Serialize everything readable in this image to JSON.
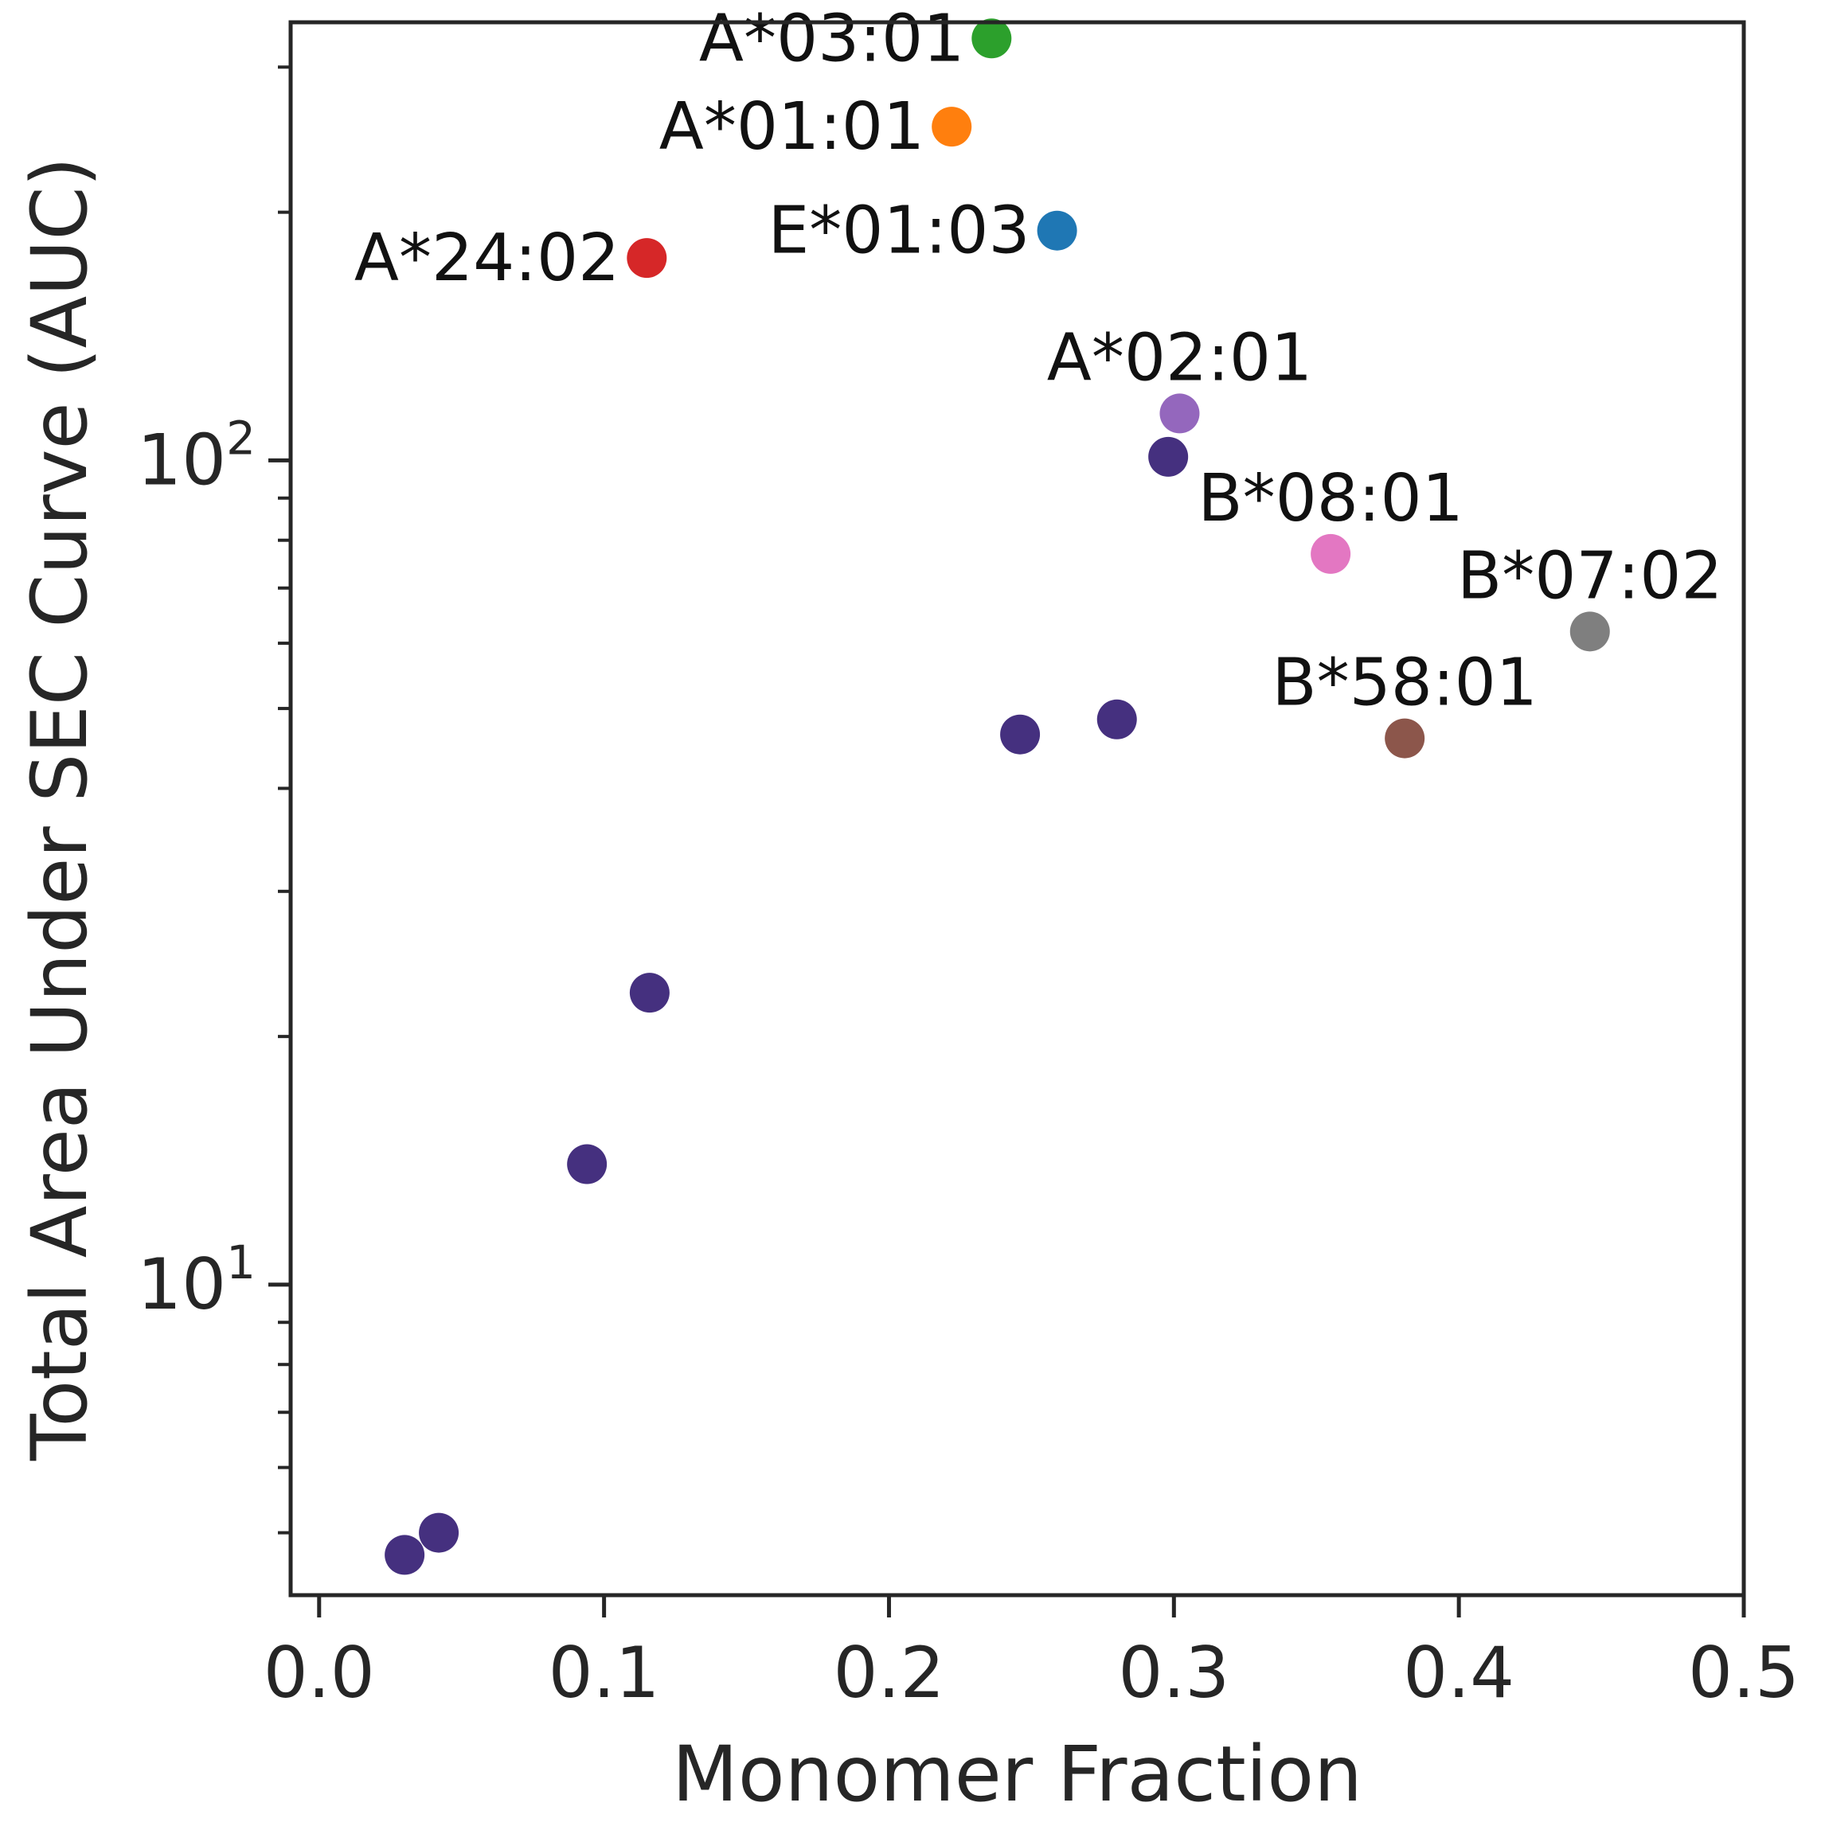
{
  "chart_data": {
    "type": "scatter",
    "title": "",
    "xlabel": "Monomer Fraction",
    "ylabel": "Total Area Under SEC Curve (AUC)",
    "xlim": [
      -0.01,
      0.5
    ],
    "ylim": [
      4.2,
      340
    ],
    "yscale": "log",
    "grid": false,
    "x_ticks": [
      {
        "value": 0.0,
        "label": "0.0"
      },
      {
        "value": 0.1,
        "label": "0.1"
      },
      {
        "value": 0.2,
        "label": "0.2"
      },
      {
        "value": 0.3,
        "label": "0.3"
      },
      {
        "value": 0.4,
        "label": "0.4"
      },
      {
        "value": 0.5,
        "label": "0.5"
      }
    ],
    "y_major_ticks": [
      {
        "value": 10,
        "base": "10",
        "exp": "1"
      },
      {
        "value": 100,
        "base": "10",
        "exp": "2"
      }
    ],
    "y_minor_ticks": [
      5,
      6,
      7,
      8,
      9,
      20,
      30,
      40,
      50,
      60,
      70,
      80,
      90,
      200,
      300
    ],
    "default_color": "#45307f",
    "points": [
      {
        "x": 0.236,
        "y": 325,
        "label": "A*03:01",
        "color": "#2ca02c",
        "label_pos": "left"
      },
      {
        "x": 0.222,
        "y": 254,
        "label": "A*01:01",
        "color": "#ff7f0e",
        "label_pos": "left"
      },
      {
        "x": 0.259,
        "y": 190,
        "label": "E*01:03",
        "color": "#1f77b4",
        "label_pos": "left"
      },
      {
        "x": 0.115,
        "y": 176,
        "label": "A*24:02",
        "color": "#d62728",
        "label_pos": "left"
      },
      {
        "x": 0.302,
        "y": 114,
        "label": "A*02:01",
        "color": "#9467bd",
        "label_pos": "above"
      },
      {
        "x": 0.355,
        "y": 77,
        "label": "B*08:01",
        "color": "#e377c2",
        "label_pos": "above"
      },
      {
        "x": 0.446,
        "y": 62,
        "label": "B*07:02",
        "color": "#7f7f7f",
        "label_pos": "above"
      },
      {
        "x": 0.381,
        "y": 46,
        "label": "B*58:01",
        "color": "#8c564b",
        "label_pos": "above"
      },
      {
        "x": 0.298,
        "y": 101,
        "label": "",
        "color": "#45307f"
      },
      {
        "x": 0.246,
        "y": 46.5,
        "label": "",
        "color": "#45307f"
      },
      {
        "x": 0.28,
        "y": 48.5,
        "label": "",
        "color": "#45307f"
      },
      {
        "x": 0.116,
        "y": 22.6,
        "label": "",
        "color": "#45307f"
      },
      {
        "x": 0.094,
        "y": 14.0,
        "label": "",
        "color": "#45307f"
      },
      {
        "x": 0.042,
        "y": 5.0,
        "label": "",
        "color": "#45307f"
      },
      {
        "x": 0.03,
        "y": 4.7,
        "label": "",
        "color": "#45307f"
      }
    ]
  }
}
